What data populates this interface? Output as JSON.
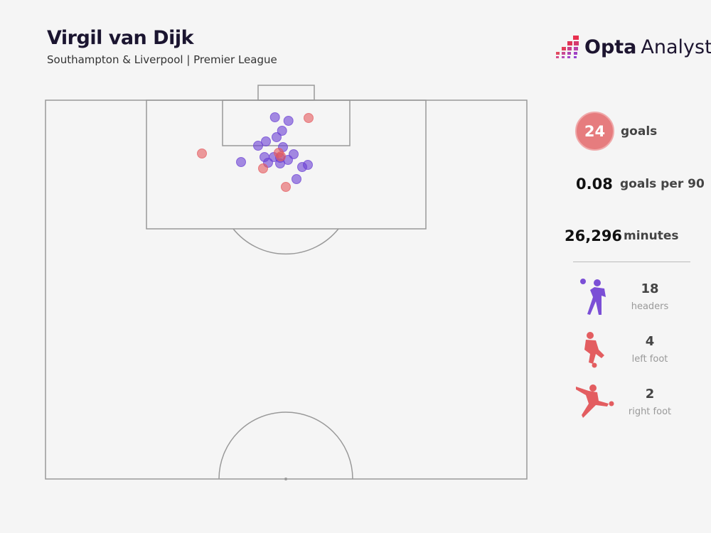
{
  "header": {
    "title": "Virgil van Dijk",
    "subtitle": "Southampton & Liverpool | Premier League"
  },
  "logo": {
    "opta": "Opta",
    "analyst": "Analyst"
  },
  "stats": {
    "goals_value": "24",
    "goals_label": "goals",
    "gp90_value": "0.08",
    "gp90_label": "goals per 90",
    "minutes_value": "26,296",
    "minutes_label": "minutes"
  },
  "breakdown": [
    {
      "value": "18",
      "label": "headers",
      "icon": "header-player-icon",
      "color": "#7b4fd6"
    },
    {
      "value": "4",
      "label": "left foot",
      "icon": "left-foot-player-icon",
      "color": "#e35d60"
    },
    {
      "value": "2",
      "label": "right foot",
      "icon": "right-foot-player-icon",
      "color": "#e35d60"
    }
  ],
  "colors": {
    "header": "#6a3fd4",
    "foot": "#e55a5e"
  },
  "chart_data": {
    "type": "scatter",
    "description_units": "pitch half, goal at top",
    "series": [
      {
        "name": "headers",
        "color": "#6a3fd4",
        "points": [
          [
            386.7,
            165
          ],
          [
            405.7,
            170
          ],
          [
            396.7,
            184
          ],
          [
            389,
            193
          ],
          [
            374,
            199
          ],
          [
            363,
            205
          ],
          [
            398,
            207
          ],
          [
            413,
            217
          ],
          [
            372,
            221
          ],
          [
            385,
            221
          ],
          [
            405,
            225
          ],
          [
            377,
            229
          ],
          [
            394,
            230
          ],
          [
            339,
            228
          ],
          [
            425,
            235
          ],
          [
            433,
            232
          ],
          [
            417,
            252
          ],
          [
            394,
            222
          ]
        ]
      },
      {
        "name": "foot",
        "color": "#e55a5e",
        "points": [
          [
            434,
            166
          ],
          [
            284,
            216
          ],
          [
            395,
            220
          ],
          [
            392,
            215
          ],
          [
            370,
            237
          ],
          [
            402,
            263
          ]
        ]
      }
    ]
  }
}
